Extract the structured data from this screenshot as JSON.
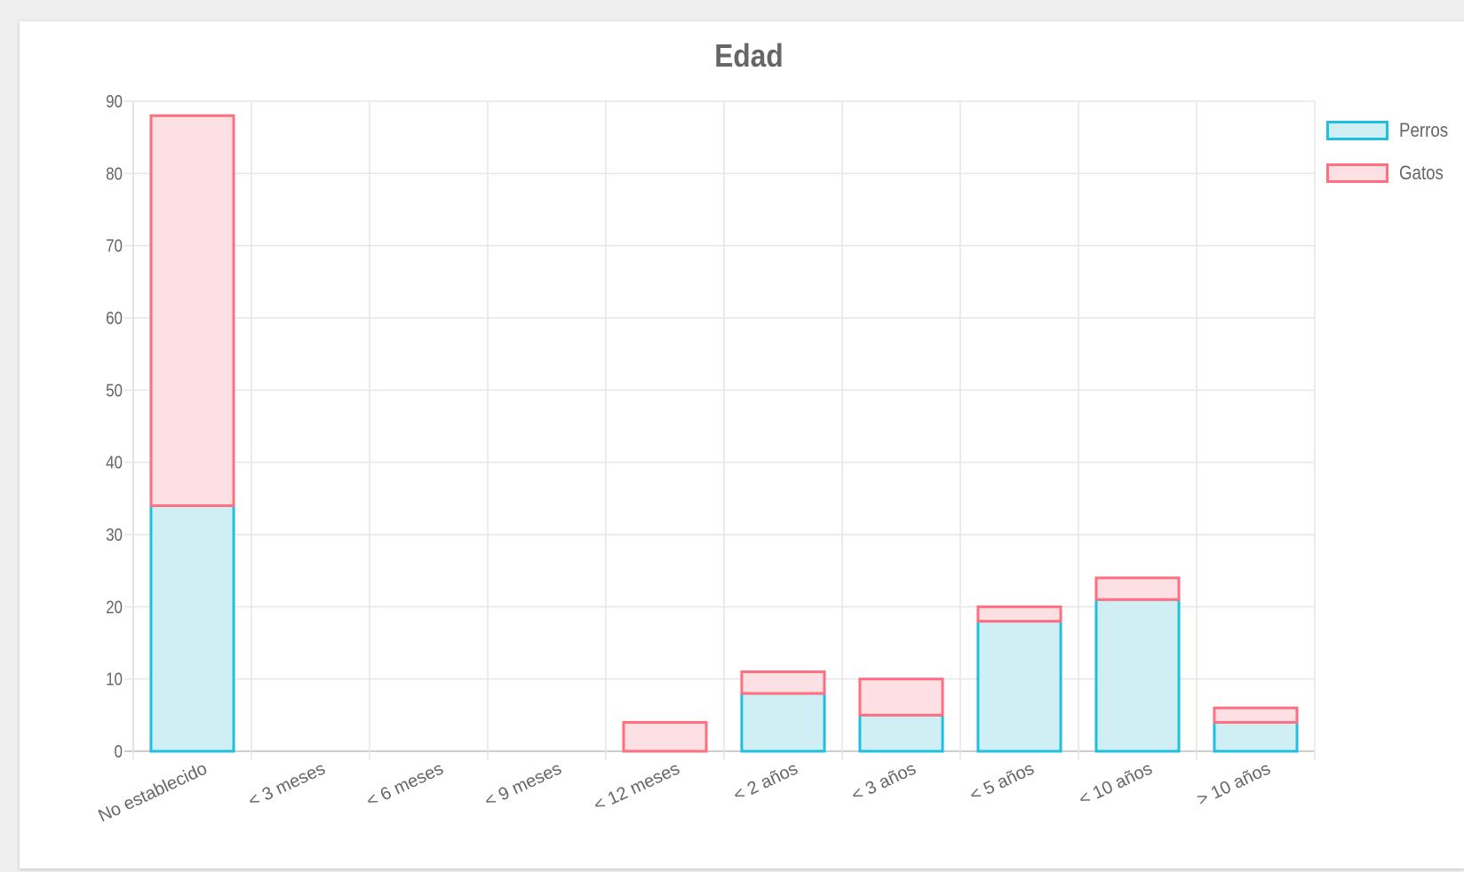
{
  "chart_data": {
    "type": "bar",
    "stacked": true,
    "title": "Edad",
    "xlabel": "",
    "ylabel": "",
    "categories": [
      "No establecido",
      "< 3 meses",
      "< 6 meses",
      "< 9 meses",
      "< 12 meses",
      "< 2 años",
      "< 3 años",
      "< 5 años",
      "< 10 años",
      "> 10 años"
    ],
    "series": [
      {
        "name": "Perros",
        "values": [
          34,
          0,
          0,
          0,
          0,
          8,
          5,
          18,
          21,
          4
        ],
        "fill": "#d0eff5",
        "stroke": "#1fbfdf"
      },
      {
        "name": "Gatos",
        "values": [
          54,
          0,
          0,
          0,
          4,
          3,
          5,
          2,
          3,
          2
        ],
        "fill": "#fde0e4",
        "stroke": "#ff6f80"
      }
    ],
    "ylim": [
      0,
      90
    ],
    "yticks": [
      0,
      10,
      20,
      30,
      40,
      50,
      60,
      70,
      80,
      90
    ],
    "grid": true,
    "legend_position": "right"
  }
}
